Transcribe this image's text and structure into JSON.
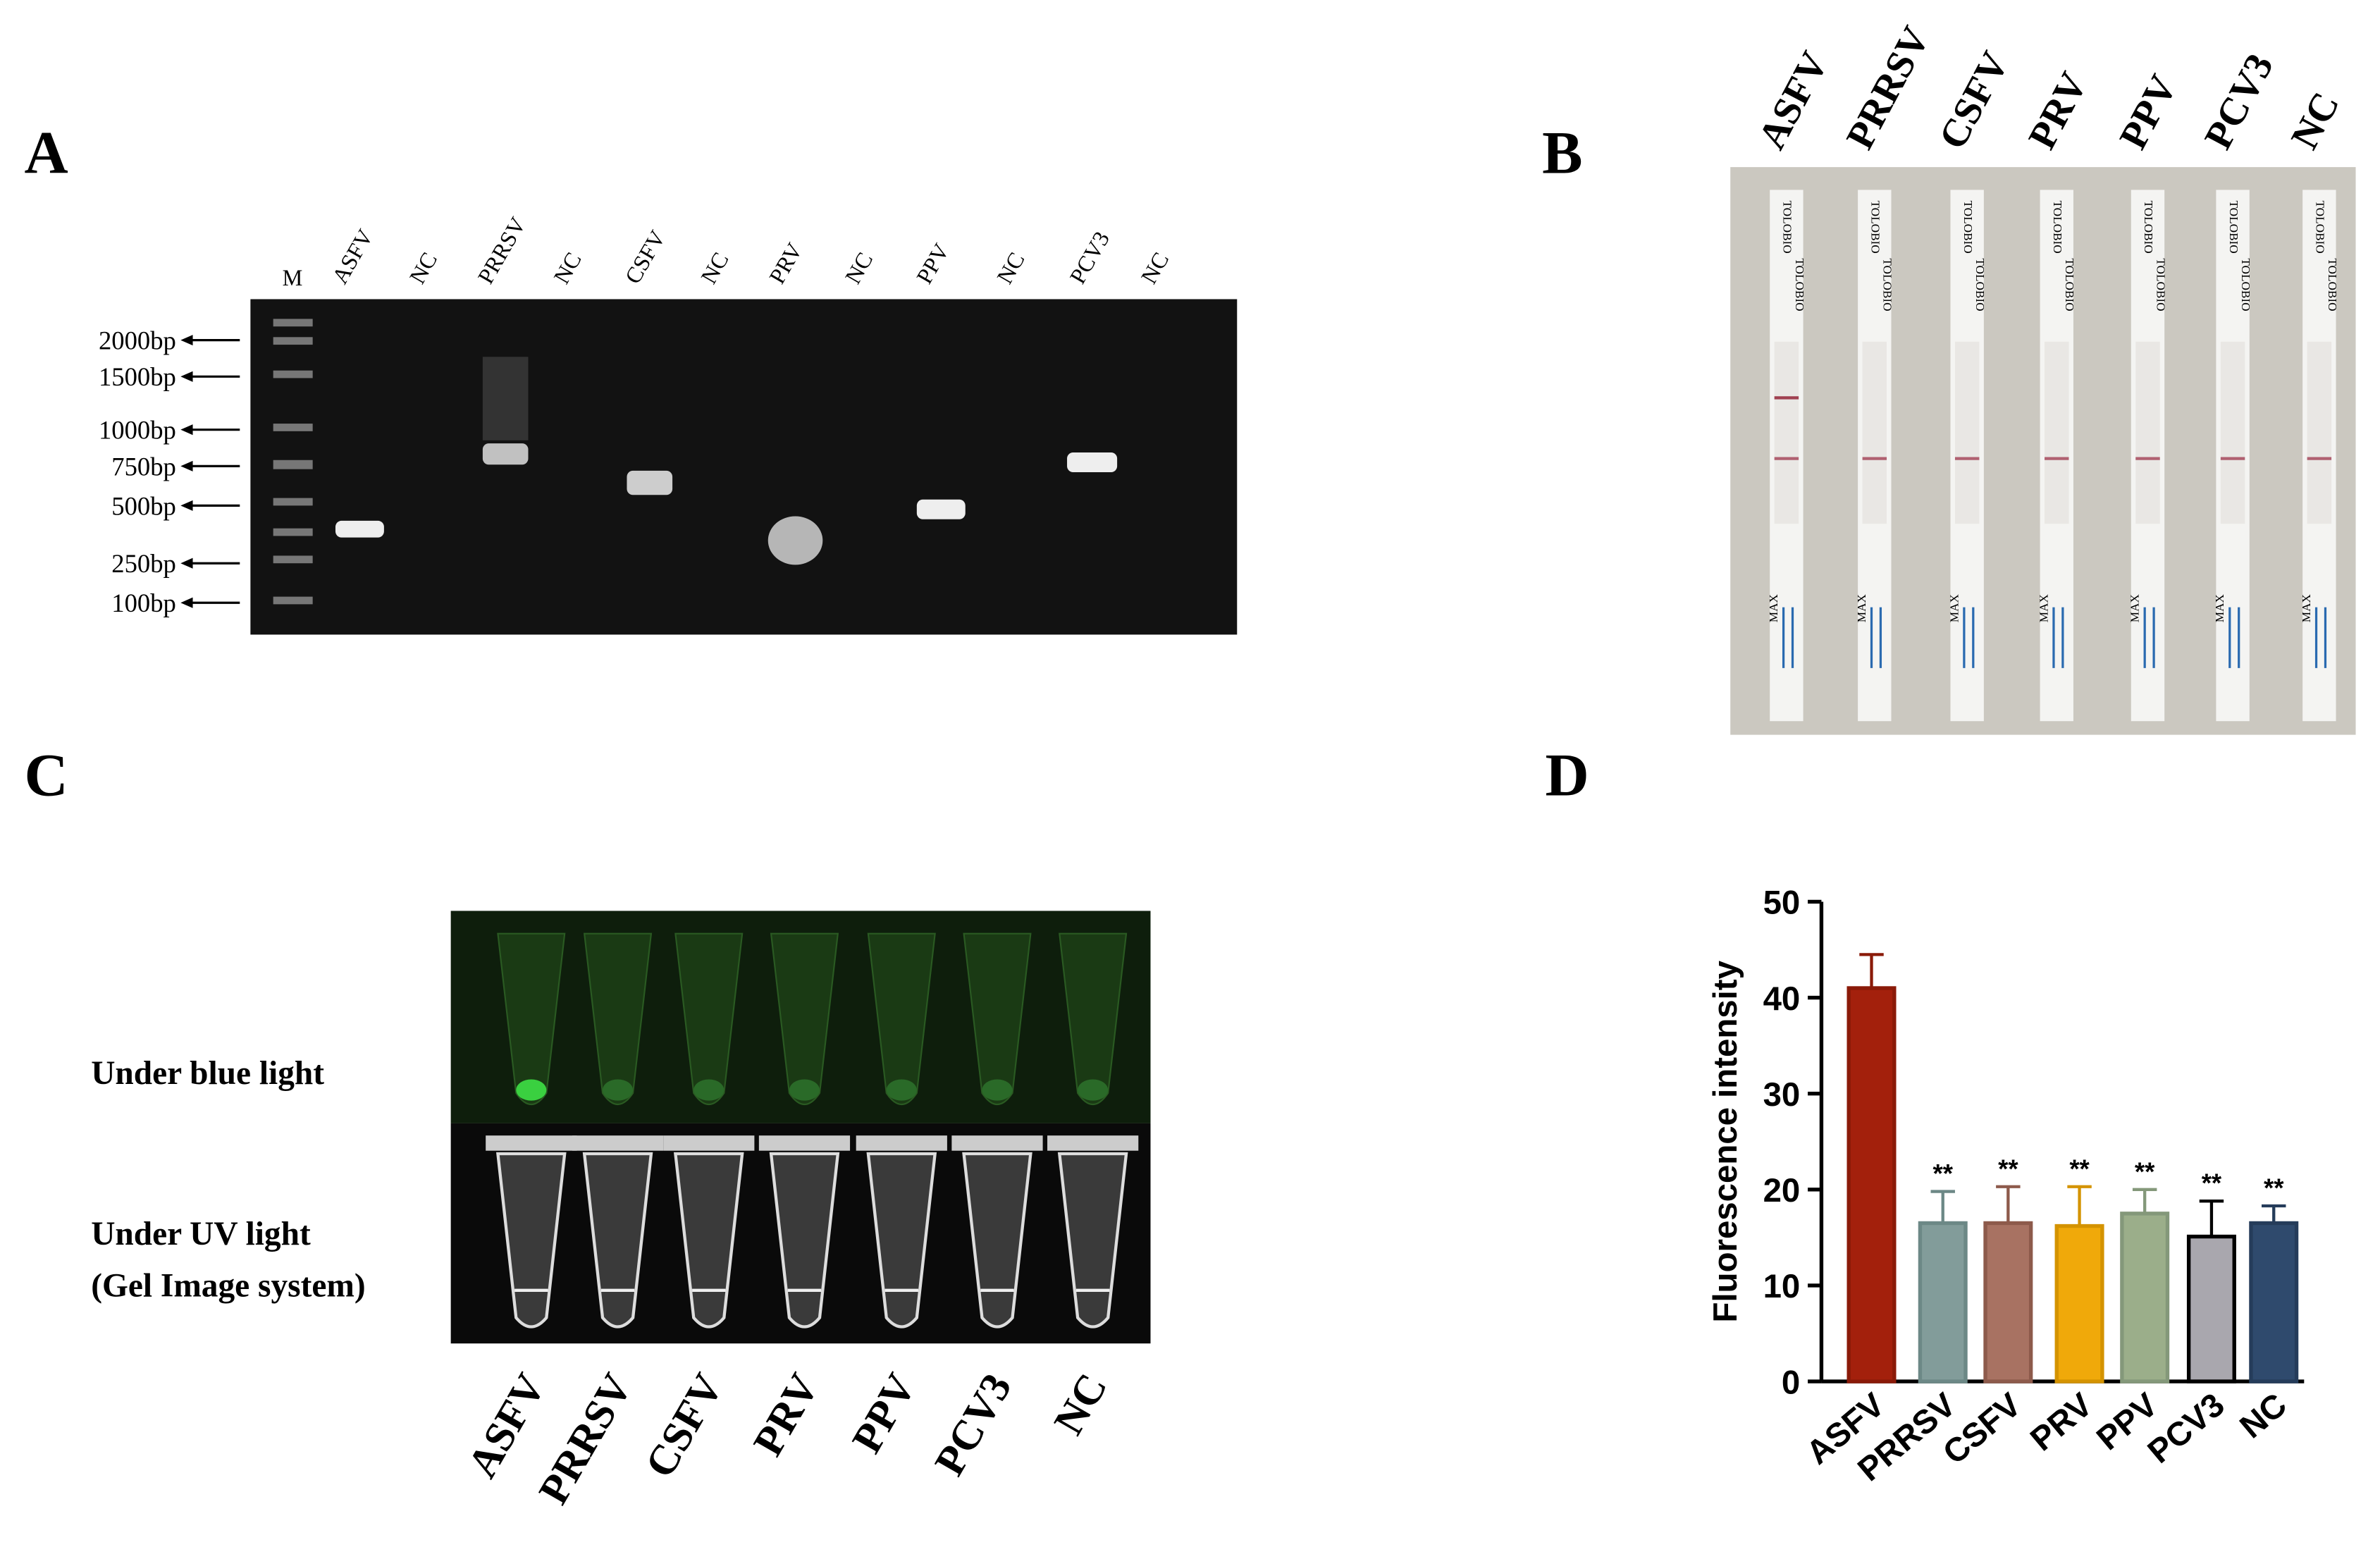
{
  "panel_a": {
    "label": "A",
    "marker_lane": "M",
    "lanes": [
      "ASFV",
      "NC",
      "PRRSV",
      "NC",
      "CSFV",
      "NC",
      "PRV",
      "NC",
      "PPV",
      "NC",
      "PCV3",
      "NC"
    ],
    "markers": [
      "2000bp",
      "1500bp",
      "1000bp",
      "750bp",
      "500bp",
      "250bp",
      "100bp"
    ]
  },
  "panel_b": {
    "label": "B",
    "lanes": [
      "ASFV",
      "PRRSV",
      "CSFV",
      "PRV",
      "PPV",
      "PCV3",
      "NC"
    ],
    "strip_brand": "TOLOBIO",
    "strip_max": "MAX"
  },
  "panel_c": {
    "label": "C",
    "row_top": "Under blue light",
    "row_bottom": [
      "Under UV light",
      "(Gel Image system)"
    ],
    "lanes": [
      "ASFV",
      "PRRSV",
      "CSFV",
      "PRV",
      "PPV",
      "PCV3",
      "NC"
    ]
  },
  "panel_d": {
    "label": "D"
  },
  "chart_data": {
    "type": "bar",
    "ylabel": "Fluorescence intensity",
    "categories": [
      "ASFV",
      "PRRSV",
      "CSFV",
      "PRV",
      "PPV",
      "PCV3",
      "NC"
    ],
    "values": [
      41,
      16.5,
      16.5,
      16.2,
      17.5,
      15.1,
      16.5
    ],
    "errors": [
      3.5,
      3.3,
      3.8,
      4.1,
      2.5,
      3.7,
      1.8
    ],
    "annotations": [
      null,
      "**",
      "**",
      "**",
      "**",
      "**",
      "**"
    ],
    "colors": [
      "#a3200c",
      "#829c9a",
      "#a87262",
      "#f0a90a",
      "#9bae8a",
      "#a9a7ae",
      "#2f4a6d"
    ],
    "edgecolors": [
      "#8a1a08",
      "#6c8886",
      "#8d5a4b",
      "#d49300",
      "#84987a",
      "#000000",
      "#253c5a"
    ],
    "ylim": [
      0,
      50
    ],
    "yticks": [
      0,
      10,
      20,
      30,
      40,
      50
    ]
  }
}
